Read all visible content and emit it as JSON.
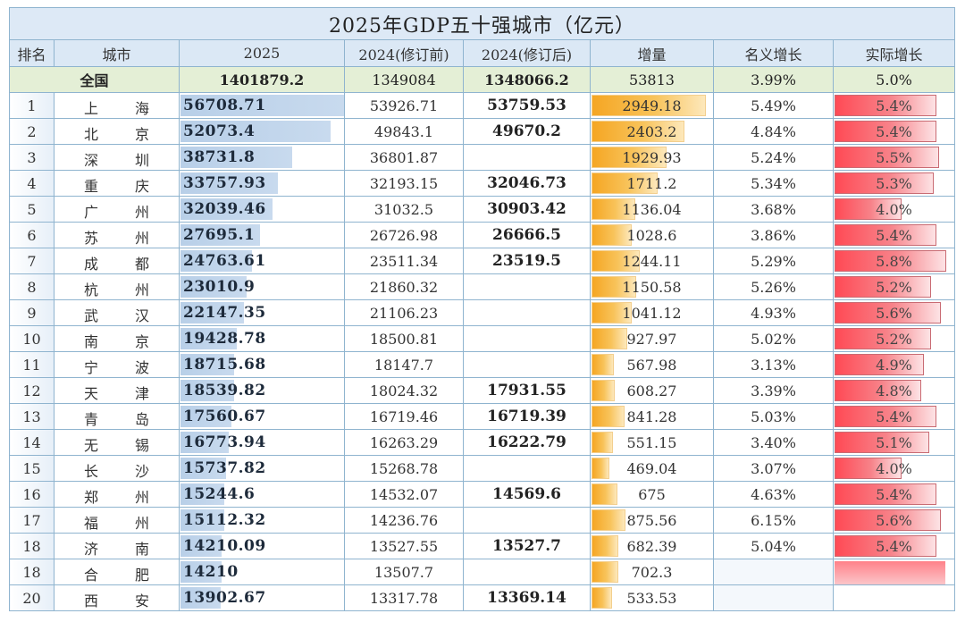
{
  "title": "2025年GDP五十强城市（亿元）",
  "headers": {
    "rank": "排名",
    "city": "城市",
    "gdp2025": "2025",
    "pre2024": "2024(修订前)",
    "post2024": "2024(修订后)",
    "increase": "增量",
    "nominal": "名义增长",
    "real": "实际增长"
  },
  "national": {
    "label": "全国",
    "gdp2025": "1401879.2",
    "pre2024": "1349084",
    "post2024": "1348066.2",
    "increase": "53813",
    "nominal": "3.99%",
    "real": "5.0%"
  },
  "colors": {
    "gdp_bar": "#b8cfe8",
    "increase_bar": "#f5a623",
    "real_bar": "#ff4a55",
    "title_bg": "#dde9f6",
    "national_bg": "#e4efd6",
    "grid": "#8fb4cf"
  },
  "rows": [
    {
      "rank": "1",
      "city1": "上",
      "city2": "海",
      "gdp2025": "56708.71",
      "pre2024": "53926.71",
      "post2024": "53759.53",
      "increase": "2949.18",
      "nominal": "5.49%",
      "real": "5.4%",
      "gdp_v": 56708.71,
      "inc_v": 2949.18,
      "real_v": 5.4
    },
    {
      "rank": "2",
      "city1": "北",
      "city2": "京",
      "gdp2025": "52073.4",
      "pre2024": "49843.1",
      "post2024": "49670.2",
      "increase": "2403.2",
      "nominal": "4.84%",
      "real": "5.4%",
      "gdp_v": 52073.4,
      "inc_v": 2403.2,
      "real_v": 5.4
    },
    {
      "rank": "3",
      "city1": "深",
      "city2": "圳",
      "gdp2025": "38731.8",
      "pre2024": "36801.87",
      "post2024": "",
      "increase": "1929.93",
      "nominal": "5.24%",
      "real": "5.5%",
      "gdp_v": 38731.8,
      "inc_v": 1929.93,
      "real_v": 5.5
    },
    {
      "rank": "4",
      "city1": "重",
      "city2": "庆",
      "gdp2025": "33757.93",
      "pre2024": "32193.15",
      "post2024": "32046.73",
      "increase": "1711.2",
      "nominal": "5.34%",
      "real": "5.3%",
      "gdp_v": 33757.93,
      "inc_v": 1711.2,
      "real_v": 5.3
    },
    {
      "rank": "5",
      "city1": "广",
      "city2": "州",
      "gdp2025": "32039.46",
      "pre2024": "31032.5",
      "post2024": "30903.42",
      "increase": "1136.04",
      "nominal": "3.68%",
      "real": "4.0%",
      "gdp_v": 32039.46,
      "inc_v": 1136.04,
      "real_v": 4.0
    },
    {
      "rank": "6",
      "city1": "苏",
      "city2": "州",
      "gdp2025": "27695.1",
      "pre2024": "26726.98",
      "post2024": "26666.5",
      "increase": "1028.6",
      "nominal": "3.86%",
      "real": "5.4%",
      "gdp_v": 27695.1,
      "inc_v": 1028.6,
      "real_v": 5.4
    },
    {
      "rank": "7",
      "city1": "成",
      "city2": "都",
      "gdp2025": "24763.61",
      "pre2024": "23511.34",
      "post2024": "23519.5",
      "increase": "1244.11",
      "nominal": "5.29%",
      "real": "5.8%",
      "gdp_v": 24763.61,
      "inc_v": 1244.11,
      "real_v": 5.8
    },
    {
      "rank": "8",
      "city1": "杭",
      "city2": "州",
      "gdp2025": "23010.9",
      "pre2024": "21860.32",
      "post2024": "",
      "increase": "1150.58",
      "nominal": "5.26%",
      "real": "5.2%",
      "gdp_v": 23010.9,
      "inc_v": 1150.58,
      "real_v": 5.2
    },
    {
      "rank": "9",
      "city1": "武",
      "city2": "汉",
      "gdp2025": "22147.35",
      "pre2024": "21106.23",
      "post2024": "",
      "increase": "1041.12",
      "nominal": "4.93%",
      "real": "5.6%",
      "gdp_v": 22147.35,
      "inc_v": 1041.12,
      "real_v": 5.6
    },
    {
      "rank": "10",
      "city1": "南",
      "city2": "京",
      "gdp2025": "19428.78",
      "pre2024": "18500.81",
      "post2024": "",
      "increase": "927.97",
      "nominal": "5.02%",
      "real": "5.2%",
      "gdp_v": 19428.78,
      "inc_v": 927.97,
      "real_v": 5.2
    },
    {
      "rank": "11",
      "city1": "宁",
      "city2": "波",
      "gdp2025": "18715.68",
      "pre2024": "18147.7",
      "post2024": "",
      "increase": "567.98",
      "nominal": "3.13%",
      "real": "4.9%",
      "gdp_v": 18715.68,
      "inc_v": 567.98,
      "real_v": 4.9
    },
    {
      "rank": "12",
      "city1": "天",
      "city2": "津",
      "gdp2025": "18539.82",
      "pre2024": "18024.32",
      "post2024": "17931.55",
      "increase": "608.27",
      "nominal": "3.39%",
      "real": "4.8%",
      "gdp_v": 18539.82,
      "inc_v": 608.27,
      "real_v": 4.8
    },
    {
      "rank": "13",
      "city1": "青",
      "city2": "岛",
      "gdp2025": "17560.67",
      "pre2024": "16719.46",
      "post2024": "16719.39",
      "increase": "841.28",
      "nominal": "5.03%",
      "real": "5.4%",
      "gdp_v": 17560.67,
      "inc_v": 841.28,
      "real_v": 5.4
    },
    {
      "rank": "14",
      "city1": "无",
      "city2": "锡",
      "gdp2025": "16773.94",
      "pre2024": "16263.29",
      "post2024": "16222.79",
      "increase": "551.15",
      "nominal": "3.40%",
      "real": "5.1%",
      "gdp_v": 16773.94,
      "inc_v": 551.15,
      "real_v": 5.1
    },
    {
      "rank": "15",
      "city1": "长",
      "city2": "沙",
      "gdp2025": "15737.82",
      "pre2024": "15268.78",
      "post2024": "",
      "increase": "469.04",
      "nominal": "3.07%",
      "real": "4.0%",
      "gdp_v": 15737.82,
      "inc_v": 469.04,
      "real_v": 4.0
    },
    {
      "rank": "16",
      "city1": "郑",
      "city2": "州",
      "gdp2025": "15244.6",
      "pre2024": "14532.07",
      "post2024": "14569.6",
      "increase": "675",
      "nominal": "4.63%",
      "real": "5.4%",
      "gdp_v": 15244.6,
      "inc_v": 675,
      "real_v": 5.4
    },
    {
      "rank": "17",
      "city1": "福",
      "city2": "州",
      "gdp2025": "15112.32",
      "pre2024": "14236.76",
      "post2024": "",
      "increase": "875.56",
      "nominal": "6.15%",
      "real": "5.6%",
      "gdp_v": 15112.32,
      "inc_v": 875.56,
      "real_v": 5.6
    },
    {
      "rank": "18",
      "city1": "济",
      "city2": "南",
      "gdp2025": "14210.09",
      "pre2024": "13527.55",
      "post2024": "13527.7",
      "increase": "682.39",
      "nominal": "5.04%",
      "real": "5.4%",
      "gdp_v": 14210.09,
      "inc_v": 682.39,
      "real_v": 5.4
    },
    {
      "rank": "18",
      "city1": "合",
      "city2": "肥",
      "gdp2025": "14210",
      "pre2024": "13507.7",
      "post2024": "",
      "increase": "702.3",
      "nominal": "",
      "real": "",
      "gdp_v": 14210,
      "inc_v": 702.3,
      "real_v": null
    },
    {
      "rank": "20",
      "city1": "西",
      "city2": "安",
      "gdp2025": "13902.67",
      "pre2024": "13317.78",
      "post2024": "13369.14",
      "increase": "533.53",
      "nominal": "",
      "real": "",
      "gdp_v": 13902.67,
      "inc_v": 533.53,
      "real_v": null
    }
  ],
  "scales": {
    "gdp_max": 56708.71,
    "inc_max": 2949.18,
    "real_max": 5.8
  }
}
